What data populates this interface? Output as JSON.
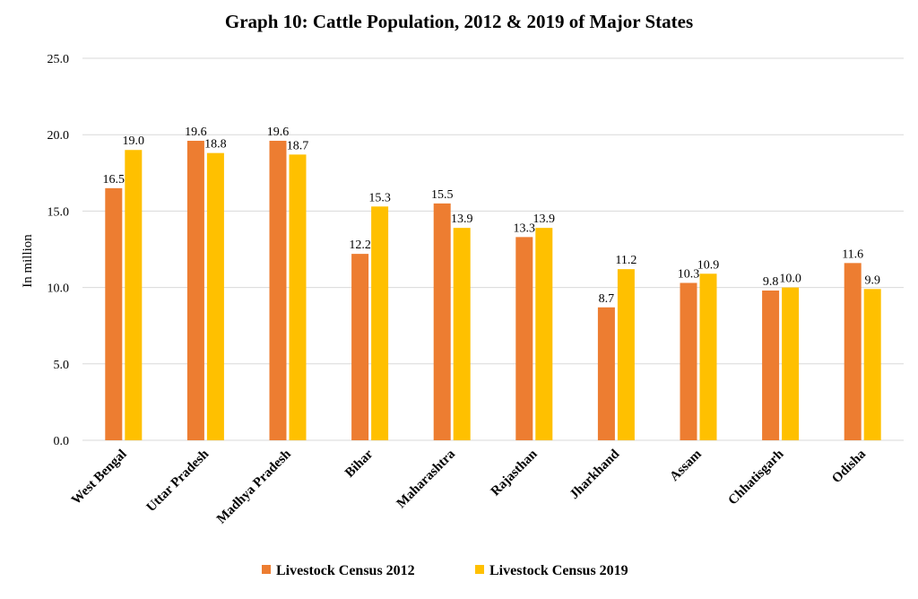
{
  "chart_data": {
    "type": "bar",
    "title": "Graph 10: Cattle Population, 2012 & 2019 of Major States",
    "ylabel": "In million",
    "xlabel": "",
    "ylim": [
      0,
      25
    ],
    "yticks": [
      "0.0",
      "5.0",
      "10.0",
      "15.0",
      "20.0",
      "25.0"
    ],
    "grid": true,
    "legend_position": "bottom",
    "categories": [
      "West Bengal",
      "Uttar Pradesh",
      "Madhya Pradesh",
      "Bihar",
      "Maharashtra",
      "Rajasthan",
      "Jharkhand",
      "Assam",
      "Chhatisgarh",
      "Odisha"
    ],
    "series": [
      {
        "name": "Livestock Census 2012",
        "color": "#ed7d31",
        "values": [
          16.5,
          19.6,
          19.6,
          12.2,
          15.5,
          13.3,
          8.7,
          10.3,
          9.8,
          11.6
        ],
        "labels": [
          "16.5",
          "19.6",
          "19.6",
          "12.2",
          "15.5",
          "13.3",
          "8.7",
          "10.3",
          "9.8",
          "11.6"
        ]
      },
      {
        "name": "Livestock Census 2019",
        "color": "#ffc000",
        "values": [
          19.0,
          18.8,
          18.7,
          15.3,
          13.9,
          13.9,
          11.2,
          10.9,
          10.0,
          9.9
        ],
        "labels": [
          "19.0",
          "18.8",
          "18.7",
          "15.3",
          "13.9",
          "13.9",
          "11.2",
          "10.9",
          "10.0",
          "9.9"
        ]
      }
    ]
  }
}
